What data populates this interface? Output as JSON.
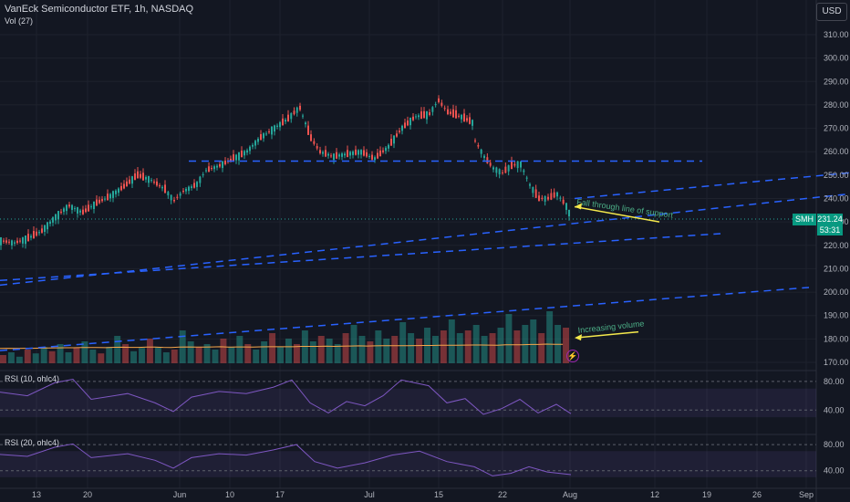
{
  "header": {
    "title": "VanEck Semiconductor ETF, 1h, NASDAQ",
    "volume_label": "Vol (27)",
    "currency_button": "USD"
  },
  "colors": {
    "background": "#131722",
    "up": "#26a69a",
    "down": "#ef5350",
    "trendline": "#2962ff",
    "annotation": "#f5e94c",
    "rsi": "#7e57c2",
    "volume_ma": "#f7a64a"
  },
  "price_marker": {
    "symbol": "SMH",
    "price": "231.24",
    "countdown": "53:31"
  },
  "annotations": [
    {
      "text": "Fall through line of support"
    },
    {
      "text": "Increasing volume"
    }
  ],
  "indicators": [
    {
      "label": "RSI (10, ohlc4)",
      "ticks": [
        "80.00",
        "40.00"
      ]
    },
    {
      "label": "RSI (20, ohlc4)",
      "ticks": [
        "80.00",
        "40.00"
      ]
    }
  ],
  "icons": {
    "alert": "lightning-icon"
  },
  "chart_data": {
    "type": "candlestick",
    "symbol": "SMH",
    "timeframe": "1h",
    "ylim": [
      170,
      315
    ],
    "y_ticks": [
      "310.00",
      "300.00",
      "290.00",
      "280.00",
      "270.00",
      "260.00",
      "250.00",
      "240.00",
      "230.00",
      "220.00",
      "210.00",
      "200.00",
      "190.00",
      "180.00",
      "170.00"
    ],
    "x_ticks": [
      "13",
      "20",
      "Jun",
      "10",
      "17",
      "Jul",
      "15",
      "22",
      "Aug",
      "12",
      "19",
      "26",
      "Sep"
    ],
    "price_path": [
      {
        "x": 0,
        "y": 222
      },
      {
        "x": 15,
        "y": 221
      },
      {
        "x": 30,
        "y": 223
      },
      {
        "x": 45,
        "y": 226
      },
      {
        "x": 60,
        "y": 232
      },
      {
        "x": 75,
        "y": 237
      },
      {
        "x": 90,
        "y": 234
      },
      {
        "x": 105,
        "y": 238
      },
      {
        "x": 120,
        "y": 241
      },
      {
        "x": 135,
        "y": 245
      },
      {
        "x": 150,
        "y": 250
      },
      {
        "x": 165,
        "y": 248
      },
      {
        "x": 180,
        "y": 244
      },
      {
        "x": 190,
        "y": 239
      },
      {
        "x": 200,
        "y": 243
      },
      {
        "x": 215,
        "y": 246
      },
      {
        "x": 225,
        "y": 252
      },
      {
        "x": 240,
        "y": 254
      },
      {
        "x": 255,
        "y": 257
      },
      {
        "x": 270,
        "y": 260
      },
      {
        "x": 285,
        "y": 266
      },
      {
        "x": 300,
        "y": 270
      },
      {
        "x": 315,
        "y": 274
      },
      {
        "x": 328,
        "y": 279
      },
      {
        "x": 340,
        "y": 266
      },
      {
        "x": 350,
        "y": 260
      },
      {
        "x": 365,
        "y": 258
      },
      {
        "x": 380,
        "y": 259
      },
      {
        "x": 395,
        "y": 260
      },
      {
        "x": 410,
        "y": 257
      },
      {
        "x": 425,
        "y": 262
      },
      {
        "x": 440,
        "y": 270
      },
      {
        "x": 455,
        "y": 275
      },
      {
        "x": 470,
        "y": 276
      },
      {
        "x": 480,
        "y": 282
      },
      {
        "x": 490,
        "y": 277
      },
      {
        "x": 505,
        "y": 275
      },
      {
        "x": 520,
        "y": 272
      }
    ],
    "price_path_2": [
      {
        "x": 520,
        "y": 265
      },
      {
        "x": 530,
        "y": 258
      },
      {
        "x": 540,
        "y": 253
      },
      {
        "x": 550,
        "y": 251
      },
      {
        "x": 560,
        "y": 254
      },
      {
        "x": 570,
        "y": 255
      },
      {
        "x": 580,
        "y": 246
      },
      {
        "x": 590,
        "y": 240
      },
      {
        "x": 600,
        "y": 240
      },
      {
        "x": 610,
        "y": 242
      },
      {
        "x": 620,
        "y": 237
      },
      {
        "x": 626,
        "y": 231.24
      }
    ],
    "last_price": 231.24,
    "rsi_10": [
      {
        "x": 0,
        "y": 65
      },
      {
        "x": 30,
        "y": 60
      },
      {
        "x": 60,
        "y": 78
      },
      {
        "x": 80,
        "y": 83
      },
      {
        "x": 100,
        "y": 55
      },
      {
        "x": 140,
        "y": 63
      },
      {
        "x": 170,
        "y": 50
      },
      {
        "x": 190,
        "y": 38
      },
      {
        "x": 210,
        "y": 58
      },
      {
        "x": 240,
        "y": 66
      },
      {
        "x": 270,
        "y": 63
      },
      {
        "x": 300,
        "y": 72
      },
      {
        "x": 320,
        "y": 82
      },
      {
        "x": 340,
        "y": 50
      },
      {
        "x": 360,
        "y": 36
      },
      {
        "x": 380,
        "y": 52
      },
      {
        "x": 400,
        "y": 46
      },
      {
        "x": 420,
        "y": 60
      },
      {
        "x": 440,
        "y": 82
      },
      {
        "x": 470,
        "y": 74
      },
      {
        "x": 490,
        "y": 50
      },
      {
        "x": 510,
        "y": 56
      },
      {
        "x": 530,
        "y": 34
      },
      {
        "x": 550,
        "y": 42
      },
      {
        "x": 570,
        "y": 55
      },
      {
        "x": 590,
        "y": 36
      },
      {
        "x": 610,
        "y": 48
      },
      {
        "x": 626,
        "y": 35
      }
    ],
    "rsi_20": [
      {
        "x": 0,
        "y": 65
      },
      {
        "x": 30,
        "y": 62
      },
      {
        "x": 60,
        "y": 76
      },
      {
        "x": 80,
        "y": 81
      },
      {
        "x": 100,
        "y": 60
      },
      {
        "x": 140,
        "y": 66
      },
      {
        "x": 170,
        "y": 56
      },
      {
        "x": 190,
        "y": 44
      },
      {
        "x": 210,
        "y": 60
      },
      {
        "x": 240,
        "y": 66
      },
      {
        "x": 270,
        "y": 64
      },
      {
        "x": 300,
        "y": 72
      },
      {
        "x": 325,
        "y": 80
      },
      {
        "x": 345,
        "y": 54
      },
      {
        "x": 370,
        "y": 44
      },
      {
        "x": 400,
        "y": 52
      },
      {
        "x": 430,
        "y": 64
      },
      {
        "x": 460,
        "y": 70
      },
      {
        "x": 490,
        "y": 54
      },
      {
        "x": 520,
        "y": 46
      },
      {
        "x": 540,
        "y": 32
      },
      {
        "x": 560,
        "y": 36
      },
      {
        "x": 580,
        "y": 46
      },
      {
        "x": 600,
        "y": 38
      },
      {
        "x": 626,
        "y": 34
      }
    ],
    "volume_levels": [
      0.15,
      0.2,
      0.12,
      0.25,
      0.18,
      0.3,
      0.22,
      0.35,
      0.2,
      0.28,
      0.4,
      0.25,
      0.18,
      0.3,
      0.5,
      0.35,
      0.22,
      0.28,
      0.45,
      0.3,
      0.2,
      0.25,
      0.6,
      0.4,
      0.3,
      0.35,
      0.25,
      0.45,
      0.3,
      0.5,
      0.35,
      0.25,
      0.4,
      0.55,
      0.3,
      0.45,
      0.35,
      0.6,
      0.4,
      0.5,
      0.45,
      0.35,
      0.55,
      0.7,
      0.5,
      0.4,
      0.6,
      0.45,
      0.5,
      0.75,
      0.55,
      0.45,
      0.65,
      0.5,
      0.6,
      0.8,
      0.55,
      0.6,
      0.7,
      0.5,
      0.55,
      0.65,
      0.9,
      0.6,
      0.7,
      0.8,
      0.55,
      0.95,
      0.7,
      0.65
    ]
  }
}
